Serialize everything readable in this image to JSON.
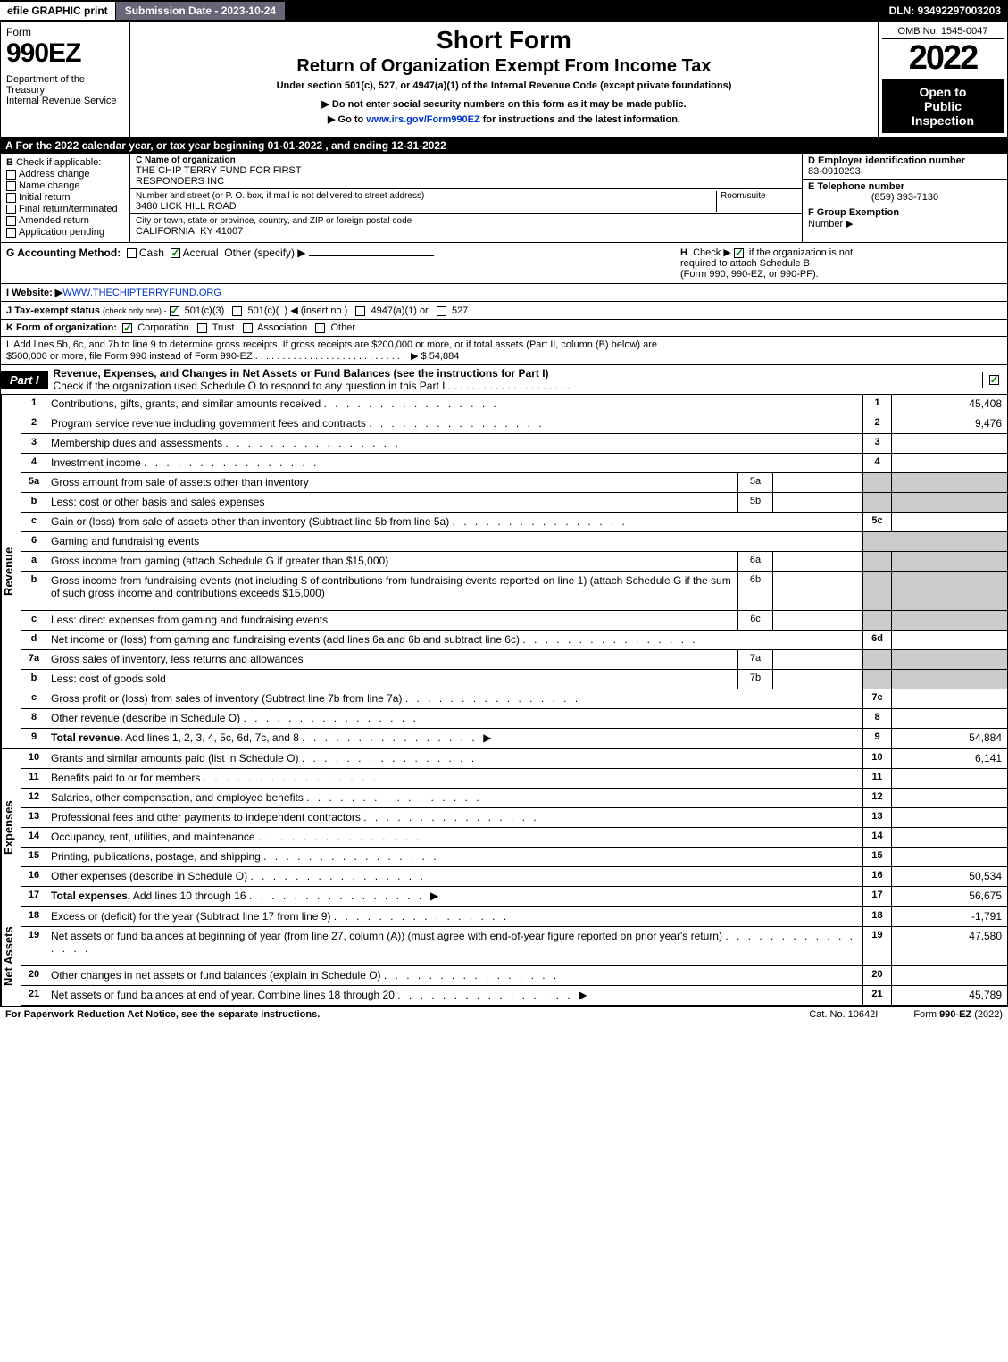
{
  "topbar": {
    "efile": "efile GRAPHIC print",
    "submission": "Submission Date - 2023-10-24",
    "dln": "DLN: 93492297003203"
  },
  "header": {
    "form_word": "Form",
    "form_num": "990EZ",
    "dept": "Department of the Treasury",
    "irs": "Internal Revenue Service",
    "title1": "Short Form",
    "title2": "Return of Organization Exempt From Income Tax",
    "sub1": "Under section 501(c), 527, or 4947(a)(1) of the Internal Revenue Code (except private foundations)",
    "sub2": "▶ Do not enter social security numbers on this form as it may be made public.",
    "sub3": "▶ Go to www.irs.gov/Form990EZ for instructions and the latest information.",
    "sub3_link": "www.irs.gov/Form990EZ",
    "omb": "OMB No. 1545-0047",
    "year": "2022",
    "inspect1": "Open to",
    "inspect2": "Public",
    "inspect3": "Inspection"
  },
  "row_a": "A  For the 2022 calendar year, or tax year beginning 01-01-2022 , and ending 12-31-2022",
  "box_b": {
    "label": "B",
    "text": "Check if applicable:",
    "opts": [
      "Address change",
      "Name change",
      "Initial return",
      "Final return/terminated",
      "Amended return",
      "Application pending"
    ]
  },
  "box_c": {
    "label_c": "C Name of organization",
    "org1": "THE CHIP TERRY FUND FOR FIRST",
    "org2": "RESPONDERS INC",
    "addr_label": "Number and street (or P. O. box, if mail is not delivered to street address)",
    "room": "Room/suite",
    "addr": "3480 LICK HILL ROAD",
    "city_label": "City or town, state or province, country, and ZIP or foreign postal code",
    "city": "CALIFORNIA, KY  41007"
  },
  "box_d": {
    "d_label": "D Employer identification number",
    "ein": "83-0910293",
    "e_label": "E Telephone number",
    "phone": "(859) 393-7130",
    "f_label": "F Group Exemption",
    "f_label2": "Number  ▶"
  },
  "line_g": {
    "label": "G Accounting Method:",
    "cash": "Cash",
    "accrual": "Accrual",
    "other": "Other (specify) ▶",
    "h_label": "H",
    "h_text1": "Check ▶",
    "h_text2": "if the organization is not",
    "h_text3": "required to attach Schedule B",
    "h_text4": "(Form 990, 990-EZ, or 990-PF)."
  },
  "line_i": {
    "label": "I Website: ▶",
    "url": "WWW.THECHIPTERRYFUND.ORG"
  },
  "line_j": {
    "label": "J Tax-exempt status",
    "sub": "(check only one) -",
    "opts": "501(c)(3)   501(c)(  ) ◀ (insert no.)   4947(a)(1) or   527"
  },
  "line_k": {
    "label": "K Form of organization:",
    "opts": "Corporation   Trust   Association   Other"
  },
  "line_l": {
    "text1": "L Add lines 5b, 6c, and 7b to line 9 to determine gross receipts. If gross receipts are $200,000 or more, or if total assets (Part II, column (B) below) are",
    "text2": "$500,000 or more, file Form 990 instead of Form 990-EZ",
    "amount": "▶ $ 54,884"
  },
  "part1": {
    "hdr": "Part I",
    "title": "Revenue, Expenses, and Changes in Net Assets or Fund Balances (see the instructions for Part I)",
    "check_line": "Check if the organization used Schedule O to respond to any question in this Part I"
  },
  "sides": {
    "revenue": "Revenue",
    "expenses": "Expenses",
    "netassets": "Net Assets"
  },
  "rows": [
    {
      "n": "1",
      "d": "Contributions, gifts, grants, and similar amounts received",
      "rn": "1",
      "rv": "45,408"
    },
    {
      "n": "2",
      "d": "Program service revenue including government fees and contracts",
      "rn": "2",
      "rv": "9,476"
    },
    {
      "n": "3",
      "d": "Membership dues and assessments",
      "rn": "3",
      "rv": ""
    },
    {
      "n": "4",
      "d": "Investment income",
      "rn": "4",
      "rv": ""
    },
    {
      "n": "5a",
      "d": "Gross amount from sale of assets other than inventory",
      "mb": "5a",
      "mv": "",
      "shade": true
    },
    {
      "n": "b",
      "d": "Less: cost or other basis and sales expenses",
      "mb": "5b",
      "mv": "",
      "shade": true
    },
    {
      "n": "c",
      "d": "Gain or (loss) from sale of assets other than inventory (Subtract line 5b from line 5a)",
      "rn": "5c",
      "rv": ""
    },
    {
      "n": "6",
      "d": "Gaming and fundraising events",
      "shade": true,
      "noval": true
    },
    {
      "n": "a",
      "d": "Gross income from gaming (attach Schedule G if greater than $15,000)",
      "mb": "6a",
      "mv": "",
      "shade": true
    },
    {
      "n": "b",
      "d": "Gross income from fundraising events (not including $                    of contributions from fundraising events reported on line 1) (attach Schedule G if the sum of such gross income and contributions exceeds $15,000)",
      "mb": "6b",
      "mv": "",
      "shade": true,
      "tall": true
    },
    {
      "n": "c",
      "d": "Less: direct expenses from gaming and fundraising events",
      "mb": "6c",
      "mv": "",
      "shade": true
    },
    {
      "n": "d",
      "d": "Net income or (loss) from gaming and fundraising events (add lines 6a and 6b and subtract line 6c)",
      "rn": "6d",
      "rv": ""
    },
    {
      "n": "7a",
      "d": "Gross sales of inventory, less returns and allowances",
      "mb": "7a",
      "mv": "",
      "shade": true
    },
    {
      "n": "b",
      "d": "Less: cost of goods sold",
      "mb": "7b",
      "mv": "",
      "shade": true
    },
    {
      "n": "c",
      "d": "Gross profit or (loss) from sales of inventory (Subtract line 7b from line 7a)",
      "rn": "7c",
      "rv": ""
    },
    {
      "n": "8",
      "d": "Other revenue (describe in Schedule O)",
      "rn": "8",
      "rv": ""
    },
    {
      "n": "9",
      "d": "Total revenue. Add lines 1, 2, 3, 4, 5c, 6d, 7c, and 8",
      "rn": "9",
      "rv": "54,884",
      "bold": true,
      "arrow": true
    }
  ],
  "rows_exp": [
    {
      "n": "10",
      "d": "Grants and similar amounts paid (list in Schedule O)",
      "rn": "10",
      "rv": "6,141"
    },
    {
      "n": "11",
      "d": "Benefits paid to or for members",
      "rn": "11",
      "rv": ""
    },
    {
      "n": "12",
      "d": "Salaries, other compensation, and employee benefits",
      "rn": "12",
      "rv": ""
    },
    {
      "n": "13",
      "d": "Professional fees and other payments to independent contractors",
      "rn": "13",
      "rv": ""
    },
    {
      "n": "14",
      "d": "Occupancy, rent, utilities, and maintenance",
      "rn": "14",
      "rv": ""
    },
    {
      "n": "15",
      "d": "Printing, publications, postage, and shipping",
      "rn": "15",
      "rv": ""
    },
    {
      "n": "16",
      "d": "Other expenses (describe in Schedule O)",
      "rn": "16",
      "rv": "50,534"
    },
    {
      "n": "17",
      "d": "Total expenses. Add lines 10 through 16",
      "rn": "17",
      "rv": "56,675",
      "bold": true,
      "arrow": true
    }
  ],
  "rows_na": [
    {
      "n": "18",
      "d": "Excess or (deficit) for the year (Subtract line 17 from line 9)",
      "rn": "18",
      "rv": "-1,791"
    },
    {
      "n": "19",
      "d": "Net assets or fund balances at beginning of year (from line 27, column (A)) (must agree with end-of-year figure reported on prior year's return)",
      "rn": "19",
      "rv": "47,580",
      "tall": true
    },
    {
      "n": "20",
      "d": "Other changes in net assets or fund balances (explain in Schedule O)",
      "rn": "20",
      "rv": ""
    },
    {
      "n": "21",
      "d": "Net assets or fund balances at end of year. Combine lines 18 through 20",
      "rn": "21",
      "rv": "45,789",
      "arrow": true
    }
  ],
  "footer": {
    "left": "For Paperwork Reduction Act Notice, see the separate instructions.",
    "mid": "Cat. No. 10642I",
    "right": "Form 990-EZ (2022)"
  }
}
